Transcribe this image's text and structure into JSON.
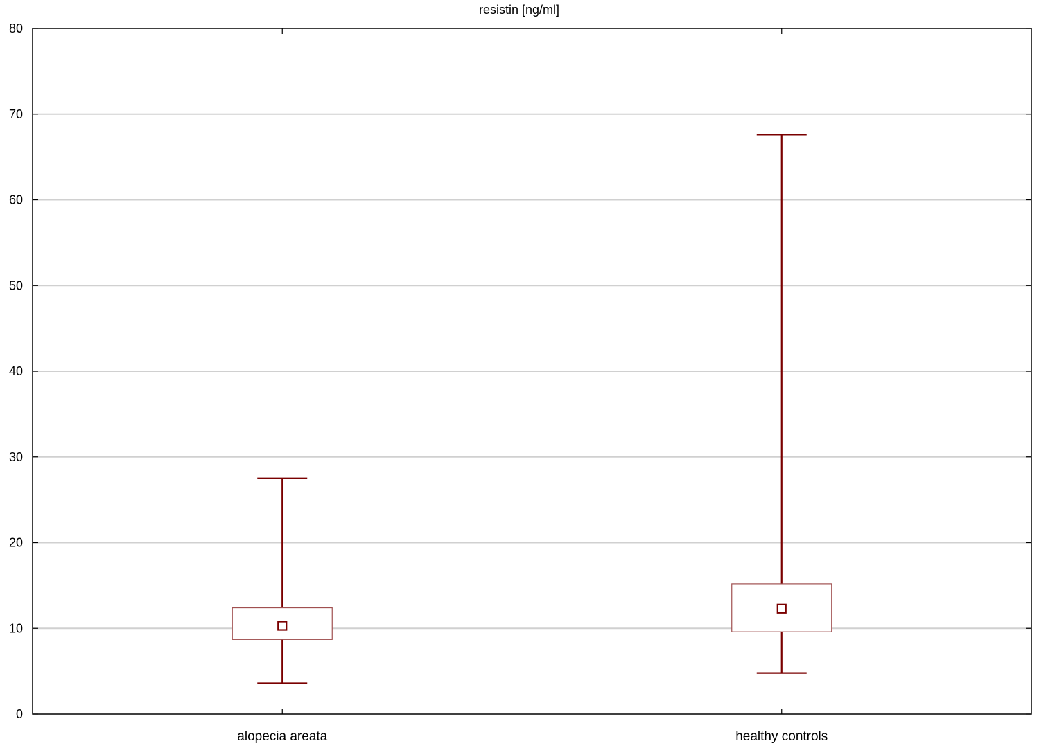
{
  "chart_data": {
    "type": "box",
    "title": "resistin [ng/ml]",
    "xlabel": "",
    "ylabel": "",
    "ylim": [
      0,
      80
    ],
    "yticks": [
      0,
      10,
      20,
      30,
      40,
      50,
      60,
      70,
      80
    ],
    "grid": true,
    "categories": [
      "alopecia areata",
      "healthy controls"
    ],
    "series": [
      {
        "median": 10.3,
        "q1": 8.7,
        "q3": 12.4,
        "whisker_low": 3.6,
        "whisker_high": 27.5
      },
      {
        "median": 12.3,
        "q1": 9.6,
        "q3": 15.2,
        "whisker_low": 4.8,
        "whisker_high": 67.6
      }
    ],
    "colors": {
      "whisker": "#7a0000",
      "box_border": "#a05050",
      "grid": "#d0d0d0"
    }
  }
}
